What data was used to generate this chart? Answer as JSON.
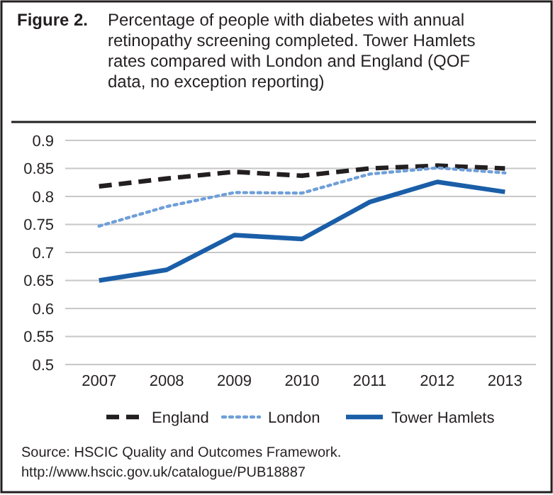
{
  "chart_data": {
    "type": "line",
    "title": "Percentage of people with diabetes with annual retinopathy screening completed. Tower Hamlets rates compared with London and England (QOF data, no exception reporting)",
    "categories": [
      "2007",
      "2008",
      "2009",
      "2010",
      "2011",
      "2012",
      "2013"
    ],
    "series": [
      {
        "name": "England",
        "color": "#231f20",
        "line_style": "dashed",
        "values": [
          0.818,
          0.832,
          0.844,
          0.837,
          0.85,
          0.855,
          0.85
        ]
      },
      {
        "name": "London",
        "color": "#6f9fd8",
        "line_style": "dotted",
        "values": [
          0.747,
          0.782,
          0.807,
          0.806,
          0.84,
          0.851,
          0.842
        ]
      },
      {
        "name": "Tower Hamlets",
        "color": "#1a5ea8",
        "line_style": "solid",
        "values": [
          0.65,
          0.669,
          0.731,
          0.724,
          0.79,
          0.826,
          0.808
        ]
      }
    ],
    "ylim": [
      0.5,
      0.9
    ],
    "yticks": [
      0.5,
      0.55,
      0.6,
      0.65,
      0.7,
      0.75,
      0.8,
      0.85,
      0.9
    ],
    "grid": "y",
    "legend": "bottom",
    "marker": "none",
    "annotations": [
      "Figure 2.",
      "Source: HSCIC Quality and Outcomes Framework.",
      "http://www.hscic.gov.uk/catalogue/PUB18887"
    ]
  }
}
